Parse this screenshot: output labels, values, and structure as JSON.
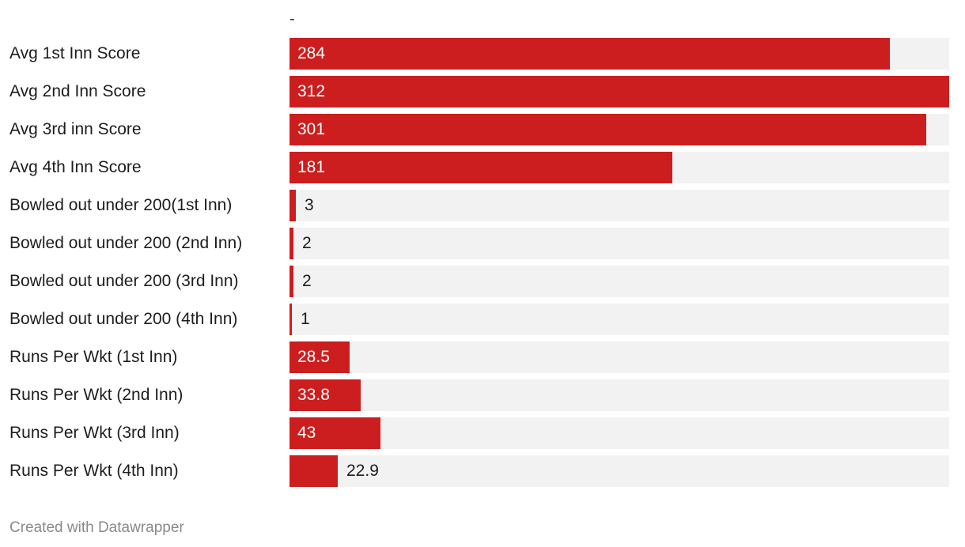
{
  "header": {
    "dash": "-"
  },
  "chart_data": {
    "type": "bar",
    "orientation": "horizontal",
    "categories": [
      "Avg 1st Inn Score",
      "Avg 2nd Inn Score",
      "Avg 3rd inn Score",
      "Avg 4th Inn Score",
      "Bowled out under 200(1st Inn)",
      "Bowled out under 200 (2nd Inn)",
      "Bowled out under 200 (3rd Inn)",
      "Bowled out under 200 (4th Inn)",
      "Runs Per Wkt (1st Inn)",
      "Runs Per Wkt (2nd Inn)",
      "Runs Per Wkt (3rd Inn)",
      "Runs Per Wkt (4th Inn)"
    ],
    "values": [
      284,
      312,
      301,
      181,
      3,
      2,
      2,
      1,
      28.5,
      33.8,
      43,
      22.9
    ],
    "value_labels": [
      "284",
      "312",
      "301",
      "181",
      "3",
      "2",
      "2",
      "1",
      "28.5",
      "33.8",
      "43",
      "22.9"
    ],
    "xlim": [
      0,
      312
    ],
    "bar_color": "#cc1e1e",
    "track_color": "#f2f2f2",
    "grid": false,
    "legend": "none"
  },
  "footer": {
    "credit": "Created with Datawrapper"
  }
}
